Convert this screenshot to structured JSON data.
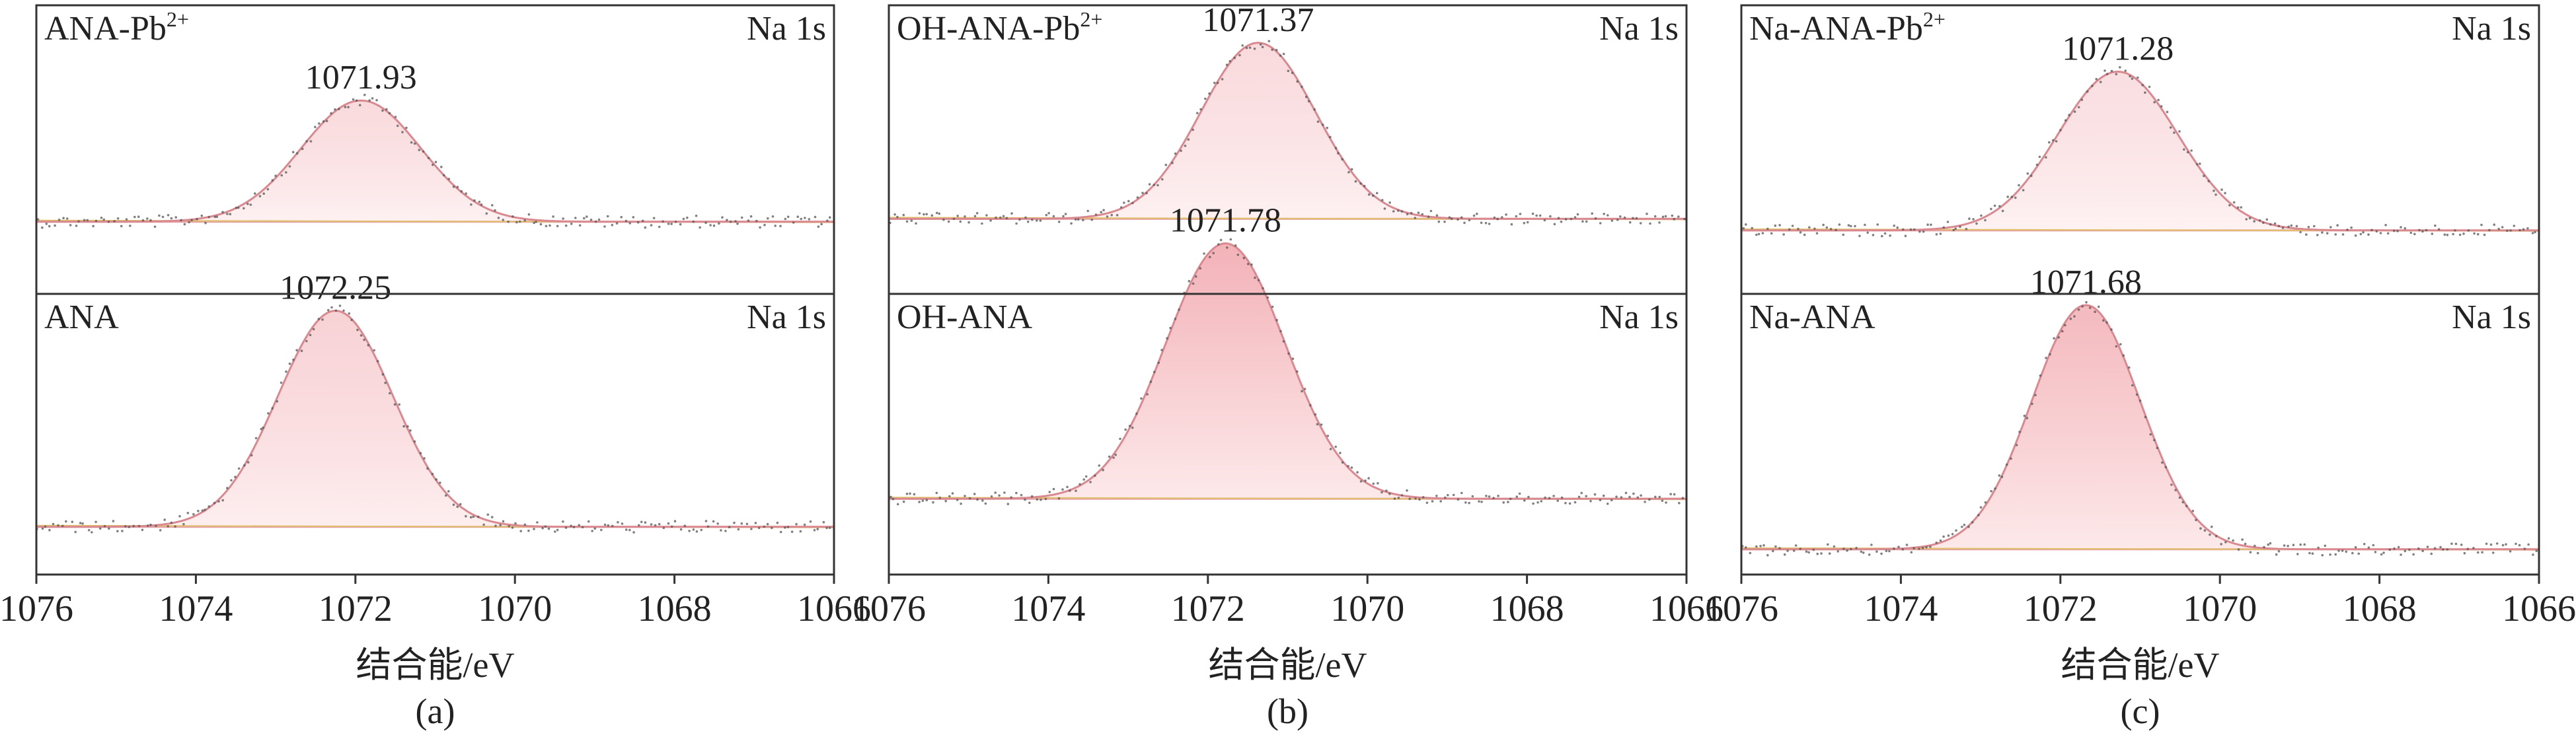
{
  "chart_data": [
    {
      "type": "line",
      "panel_label": "(a)",
      "xlabel": "结合能/eV",
      "xlim": [
        1076,
        1066
      ],
      "x_ticks": [
        "1076",
        "1074",
        "1072",
        "1070",
        "1068",
        "1066"
      ],
      "subplots": [
        {
          "name": "ANA-Pb²⁺",
          "label_base": "ANA-Pb",
          "label_sup": "2+",
          "tag": "Na 1s",
          "peak_label": "1071.93",
          "peak_x": 1071.93,
          "sigma": 0.75,
          "amplitude": 0.42,
          "baseline": 0.25,
          "fill_strength": 0.45
        },
        {
          "name": "ANA",
          "label_base": "ANA",
          "label_sup": "",
          "tag": "Na 1s",
          "peak_label": "1072.25",
          "peak_x": 1072.25,
          "sigma": 0.72,
          "amplitude": 0.77,
          "baseline": 0.17,
          "fill_strength": 0.55
        }
      ]
    },
    {
      "type": "line",
      "panel_label": "(b)",
      "xlabel": "结合能/eV",
      "xlim": [
        1076,
        1066
      ],
      "x_ticks": [
        "1076",
        "1074",
        "1072",
        "1070",
        "1068",
        "1066"
      ],
      "subplots": [
        {
          "name": "OH-ANA-Pb²⁺",
          "label_base": "OH-ANA-Pb",
          "label_sup": "2+",
          "tag": "Na 1s",
          "peak_label": "1071.37",
          "peak_x": 1071.37,
          "sigma": 0.72,
          "amplitude": 0.61,
          "baseline": 0.26,
          "fill_strength": 0.45
        },
        {
          "name": "OH-ANA",
          "label_base": "OH-ANA",
          "label_sup": "",
          "tag": "Na 1s",
          "peak_label": "1071.78",
          "peak_x": 1071.78,
          "sigma": 0.75,
          "amplitude": 0.91,
          "baseline": 0.27,
          "fill_strength": 0.95
        }
      ]
    },
    {
      "type": "line",
      "panel_label": "(c)",
      "xlabel": "结合能/eV",
      "xlim": [
        1076,
        1066
      ],
      "x_ticks": [
        "1076",
        "1074",
        "1072",
        "1070",
        "1068",
        "1066"
      ],
      "subplots": [
        {
          "name": "Na-ANA-Pb²⁺",
          "label_base": "Na-ANA-Pb",
          "label_sup": "2+",
          "tag": "Na 1s",
          "peak_label": "1071.28",
          "peak_x": 1071.28,
          "sigma": 0.75,
          "amplitude": 0.55,
          "baseline": 0.22,
          "fill_strength": 0.4
        },
        {
          "name": "Na-ANA",
          "label_base": "Na-ANA",
          "label_sup": "",
          "tag": "Na 1s",
          "peak_label": "1071.68",
          "peak_x": 1071.68,
          "sigma": 0.68,
          "amplitude": 0.87,
          "baseline": 0.09,
          "fill_strength": 0.85
        }
      ]
    }
  ],
  "colors": {
    "fit_line": "#d9898f",
    "fill_top": "#f2aeb4",
    "fill_bottom": "#fde9ea",
    "baseline_pink": "#e6a0a8",
    "baseline_yellow": "#e0c069",
    "raw_points": "#555555",
    "axis": "#333333",
    "text": "#222222"
  }
}
